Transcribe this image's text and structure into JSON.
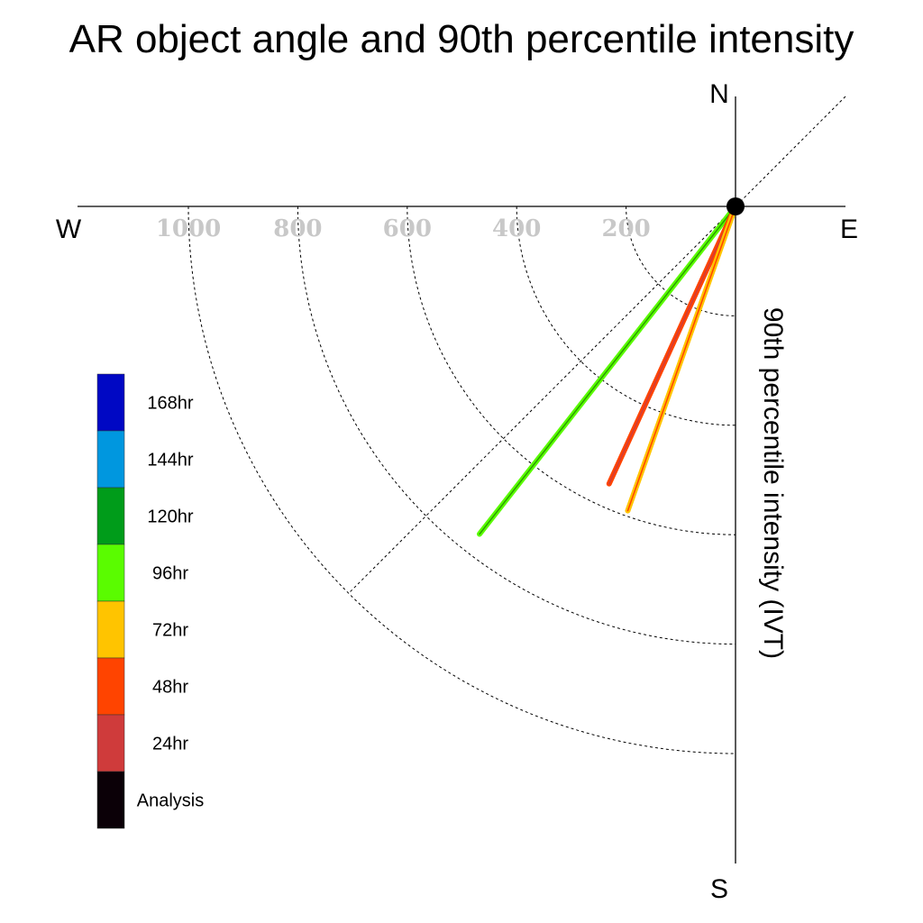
{
  "chart_data": {
    "type": "line",
    "title": "AR object angle and 90th percentile intensity",
    "ylabel": "90th percentile intensity (IVT)",
    "compass": {
      "north": "N",
      "south": "S",
      "east": "E",
      "west": "W"
    },
    "radial_ticks": [
      200,
      400,
      600,
      800,
      1000
    ],
    "radial_labels": [
      "200",
      "400",
      "600",
      "800",
      "1000"
    ],
    "rlim": [
      0,
      1000
    ],
    "grid": true,
    "legend_placement": "bottom-left",
    "legend": [
      {
        "label": "168hr",
        "color": "#0008c4"
      },
      {
        "label": "144hr",
        "color": "#0097df"
      },
      {
        "label": "120hr",
        "color": "#009c1a"
      },
      {
        "label": "96hr",
        "color": "#5afc00"
      },
      {
        "label": "72hr",
        "color": "#ffc400"
      },
      {
        "label": "48hr",
        "color": "#ff4400"
      },
      {
        "label": "24hr",
        "color": "#cf3b3b"
      },
      {
        "label": "Analysis",
        "color": "#0b0007"
      }
    ],
    "series": [
      {
        "name": "96hr",
        "angle_deg_from_south_toward_west": 38,
        "intensity": 760,
        "color": "#5afc00",
        "core_color": "#2aa000"
      },
      {
        "name": "48hr",
        "angle_deg_from_south_toward_west": 24.5,
        "intensity": 557,
        "color": "#ff4400",
        "core_color": "#cf3b3b"
      },
      {
        "name": "72hr",
        "angle_deg_from_south_toward_west": 19.5,
        "intensity": 590,
        "color": "#ffc400",
        "core_color": "#ff4400"
      }
    ],
    "origin_marker_color": "#000000",
    "tick_label_color": "#c8c8c8"
  }
}
